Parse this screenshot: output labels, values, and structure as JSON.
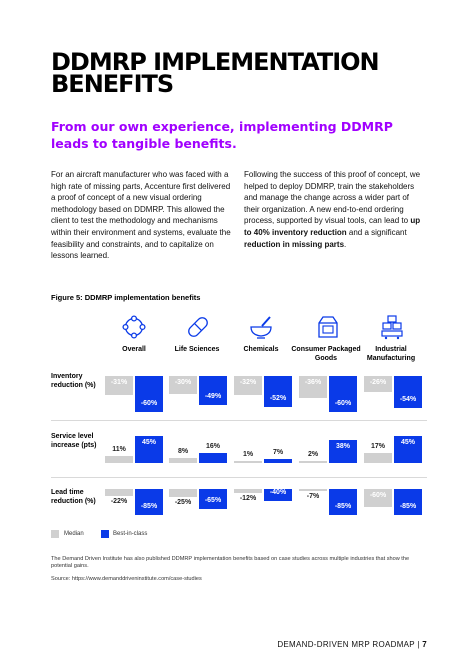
{
  "title": "DDMRP IMPLEMENTATION BENEFITS",
  "subtitle": "From our own experience, implementing DDMRP leads to tangible benefits.",
  "left_column": "For an aircraft manufacturer who was faced with a high rate of missing parts, Accenture first delivered a proof of concept of a new visual ordering methodology based on DDMRP. This allowed the client to test the methodology and mechanisms within their environment and systems, evaluate the feasibility and constraints, and to capitalize on lessons learned.",
  "right_column": {
    "part1": "Following the success of this proof of concept, we helped to deploy DDMRP, train the stakeholders and manage the change across a wider part of their organization. A new end-to-end ordering process, supported by visual tools, can lead to ",
    "bold1": "up to 40% inventory reduction",
    "part2": " and a significant ",
    "bold2": "reduction in missing parts",
    "part3": "."
  },
  "figure_title": "Figure 5: DDMRP implementation benefits",
  "icons": [
    "network-icon",
    "pill-icon",
    "mortar-pestle-icon",
    "package-icon",
    "factory-boxes-icon"
  ],
  "chart_data": {
    "type": "bar",
    "categories": [
      "Overall",
      "Life Sciences",
      "Chemicals",
      "Consumer Packaged Goods",
      "Industrial Manufacturing"
    ],
    "rows": [
      {
        "label": "Inventory reduction (%)",
        "series": [
          {
            "name": "Median",
            "values": [
              -31,
              -30,
              -32,
              -36,
              -26
            ]
          },
          {
            "name": "Best-in-class",
            "values": [
              -60,
              -49,
              -52,
              -60,
              -54
            ]
          }
        ]
      },
      {
        "label": "Service level increase (pts)",
        "series": [
          {
            "name": "Median",
            "values": [
              11,
              8,
              1,
              2,
              17
            ]
          },
          {
            "name": "Best-in-class",
            "values": [
              45,
              16,
              7,
              38,
              45
            ]
          }
        ]
      },
      {
        "label": "Lead time reduction (%)",
        "series": [
          {
            "name": "Median",
            "values": [
              -22,
              -25,
              -12,
              -7,
              -60
            ]
          },
          {
            "name": "Best-in-class",
            "values": [
              -85,
              -65,
              -40,
              -85,
              -85
            ]
          }
        ]
      }
    ],
    "value_suffix": [
      "%",
      "%",
      "%"
    ],
    "legend": [
      "Median",
      "Best-in-class"
    ],
    "colors": {
      "median": "#d0d0d0",
      "best": "#0a3ae8",
      "accent": "#a100ff"
    }
  },
  "note": "The Demand Driven Institute has also published DDMRP implementation benefits based on case studies across multiple industries that show the potential gains.",
  "source": "Source: https://www.demanddriveninstitute.com/case-studies",
  "footer": {
    "label": "DEMAND-DRIVEN MRP ROADMAP",
    "separator": "|",
    "page": "7"
  }
}
